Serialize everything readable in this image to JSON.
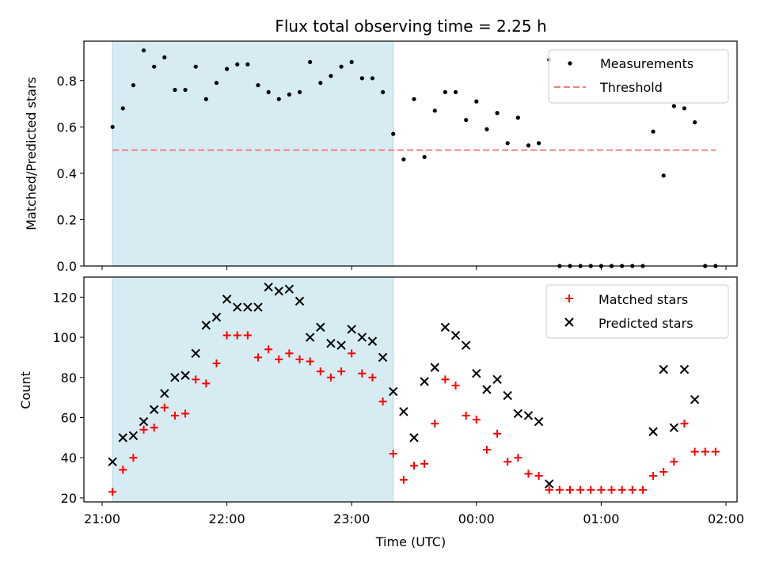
{
  "chart_data": [
    {
      "type": "scatter",
      "title": "Flux total observing time = 2.25 h",
      "ylabel": "Matched/Predicted stars",
      "xlabel": "",
      "xlim": [
        "21:00",
        "02:00"
      ],
      "ylim": [
        0,
        0.97
      ],
      "xticks": [
        "21:00",
        "22:00",
        "23:00",
        "00:00",
        "01:00",
        "02:00"
      ],
      "yticks": [
        "0.0",
        "0.2",
        "0.4",
        "0.6",
        "0.8"
      ],
      "ytick_values": [
        0,
        0.2,
        0.4,
        0.6,
        0.8
      ],
      "highlight": {
        "from": "21:05",
        "to": "23:20",
        "color": "#add8e6"
      },
      "legend": "top-right",
      "series": [
        {
          "name": "Measurements",
          "color": "#000000",
          "marker": "dot",
          "points": [
            [
              "21:05",
              0.6
            ],
            [
              "21:10",
              0.68
            ],
            [
              "21:15",
              0.78
            ],
            [
              "21:20",
              0.93
            ],
            [
              "21:25",
              0.86
            ],
            [
              "21:30",
              0.9
            ],
            [
              "21:35",
              0.76
            ],
            [
              "21:40",
              0.76
            ],
            [
              "21:45",
              0.86
            ],
            [
              "21:50",
              0.72
            ],
            [
              "21:55",
              0.79
            ],
            [
              "22:00",
              0.85
            ],
            [
              "22:05",
              0.87
            ],
            [
              "22:10",
              0.87
            ],
            [
              "22:15",
              0.78
            ],
            [
              "22:20",
              0.75
            ],
            [
              "22:25",
              0.72
            ],
            [
              "22:30",
              0.74
            ],
            [
              "22:35",
              0.75
            ],
            [
              "22:40",
              0.88
            ],
            [
              "22:45",
              0.79
            ],
            [
              "22:50",
              0.82
            ],
            [
              "22:55",
              0.86
            ],
            [
              "23:00",
              0.88
            ],
            [
              "23:05",
              0.81
            ],
            [
              "23:10",
              0.81
            ],
            [
              "23:15",
              0.75
            ],
            [
              "23:20",
              0.57
            ],
            [
              "23:25",
              0.46
            ],
            [
              "23:30",
              0.72
            ],
            [
              "23:35",
              0.47
            ],
            [
              "23:40",
              0.67
            ],
            [
              "23:45",
              0.75
            ],
            [
              "23:50",
              0.75
            ],
            [
              "23:55",
              0.63
            ],
            [
              "00:00",
              0.71
            ],
            [
              "00:05",
              0.59
            ],
            [
              "00:10",
              0.66
            ],
            [
              "00:15",
              0.53
            ],
            [
              "00:20",
              0.64
            ],
            [
              "00:25",
              0.52
            ],
            [
              "00:30",
              0.53
            ],
            [
              "00:35",
              0.89
            ],
            [
              "00:40",
              0
            ],
            [
              "00:45",
              0
            ],
            [
              "00:50",
              0
            ],
            [
              "00:55",
              0
            ],
            [
              "01:00",
              0
            ],
            [
              "01:05",
              0
            ],
            [
              "01:10",
              0
            ],
            [
              "01:15",
              0
            ],
            [
              "01:20",
              0
            ],
            [
              "01:25",
              0.58
            ],
            [
              "01:30",
              0.39
            ],
            [
              "01:35",
              0.69
            ],
            [
              "01:40",
              0.68
            ],
            [
              "01:45",
              0.62
            ],
            [
              "01:50",
              0
            ],
            [
              "01:55",
              0
            ]
          ]
        },
        {
          "name": "Threshold",
          "color": "#f08080",
          "marker": "dashed-line",
          "points": [
            [
              "21:05",
              0.5
            ],
            [
              "01:55",
              0.5
            ]
          ]
        }
      ]
    },
    {
      "type": "scatter",
      "title": "",
      "ylabel": "Count",
      "xlabel": "Time (UTC)",
      "xlim": [
        "21:00",
        "02:00"
      ],
      "ylim": [
        18,
        130
      ],
      "xticks": [
        "21:00",
        "22:00",
        "23:00",
        "00:00",
        "01:00",
        "02:00"
      ],
      "yticks": [
        "20",
        "40",
        "60",
        "80",
        "100",
        "120"
      ],
      "ytick_values": [
        20,
        40,
        60,
        80,
        100,
        120
      ],
      "highlight": {
        "from": "21:05",
        "to": "23:20",
        "color": "#add8e6"
      },
      "legend": "top-right",
      "series": [
        {
          "name": "Matched stars",
          "color": "#ff0000",
          "marker": "plus",
          "points": [
            [
              "21:05",
              23
            ],
            [
              "21:10",
              34
            ],
            [
              "21:15",
              40
            ],
            [
              "21:20",
              54
            ],
            [
              "21:25",
              55
            ],
            [
              "21:30",
              65
            ],
            [
              "21:35",
              61
            ],
            [
              "21:40",
              62
            ],
            [
              "21:45",
              79
            ],
            [
              "21:50",
              77
            ],
            [
              "21:55",
              87
            ],
            [
              "22:00",
              101
            ],
            [
              "22:05",
              101
            ],
            [
              "22:10",
              101
            ],
            [
              "22:15",
              90
            ],
            [
              "22:20",
              94
            ],
            [
              "22:25",
              89
            ],
            [
              "22:30",
              92
            ],
            [
              "22:35",
              89
            ],
            [
              "22:40",
              88
            ],
            [
              "22:45",
              83
            ],
            [
              "22:50",
              80
            ],
            [
              "22:55",
              83
            ],
            [
              "23:00",
              92
            ],
            [
              "23:05",
              82
            ],
            [
              "23:10",
              80
            ],
            [
              "23:15",
              68
            ],
            [
              "23:20",
              42
            ],
            [
              "23:25",
              29
            ],
            [
              "23:30",
              36
            ],
            [
              "23:35",
              37
            ],
            [
              "23:40",
              57
            ],
            [
              "23:45",
              79
            ],
            [
              "23:50",
              76
            ],
            [
              "23:55",
              61
            ],
            [
              "00:00",
              59
            ],
            [
              "00:05",
              44
            ],
            [
              "00:10",
              52
            ],
            [
              "00:15",
              38
            ],
            [
              "00:20",
              40
            ],
            [
              "00:25",
              32
            ],
            [
              "00:30",
              31
            ],
            [
              "00:35",
              24
            ],
            [
              "00:40",
              24
            ],
            [
              "00:45",
              24
            ],
            [
              "00:50",
              24
            ],
            [
              "00:55",
              24
            ],
            [
              "01:00",
              24
            ],
            [
              "01:05",
              24
            ],
            [
              "01:10",
              24
            ],
            [
              "01:15",
              24
            ],
            [
              "01:20",
              24
            ],
            [
              "01:25",
              31
            ],
            [
              "01:30",
              33
            ],
            [
              "01:35",
              38
            ],
            [
              "01:40",
              57
            ],
            [
              "01:45",
              43
            ],
            [
              "01:50",
              43
            ],
            [
              "01:55",
              43
            ]
          ]
        },
        {
          "name": "Predicted stars",
          "color": "#000000",
          "marker": "x",
          "points": [
            [
              "21:05",
              38
            ],
            [
              "21:10",
              50
            ],
            [
              "21:15",
              51
            ],
            [
              "21:20",
              58
            ],
            [
              "21:25",
              64
            ],
            [
              "21:30",
              72
            ],
            [
              "21:35",
              80
            ],
            [
              "21:40",
              81
            ],
            [
              "21:45",
              92
            ],
            [
              "21:50",
              106
            ],
            [
              "21:55",
              110
            ],
            [
              "22:00",
              119
            ],
            [
              "22:05",
              115
            ],
            [
              "22:10",
              115
            ],
            [
              "22:15",
              115
            ],
            [
              "22:20",
              125
            ],
            [
              "22:25",
              123
            ],
            [
              "22:30",
              124
            ],
            [
              "22:35",
              118
            ],
            [
              "22:40",
              100
            ],
            [
              "22:45",
              105
            ],
            [
              "22:50",
              97
            ],
            [
              "22:55",
              96
            ],
            [
              "23:00",
              104
            ],
            [
              "23:05",
              100
            ],
            [
              "23:10",
              98
            ],
            [
              "23:15",
              90
            ],
            [
              "23:20",
              73
            ],
            [
              "23:25",
              63
            ],
            [
              "23:30",
              50
            ],
            [
              "23:35",
              78
            ],
            [
              "23:40",
              85
            ],
            [
              "23:45",
              105
            ],
            [
              "23:50",
              101
            ],
            [
              "23:55",
              96
            ],
            [
              "00:00",
              82
            ],
            [
              "00:05",
              74
            ],
            [
              "00:10",
              79
            ],
            [
              "00:15",
              71
            ],
            [
              "00:20",
              62
            ],
            [
              "00:25",
              61
            ],
            [
              "00:30",
              58
            ],
            [
              "00:35",
              27
            ],
            [
              "01:25",
              53
            ],
            [
              "01:30",
              84
            ],
            [
              "01:35",
              55
            ],
            [
              "01:40",
              84
            ],
            [
              "01:45",
              69
            ]
          ]
        }
      ]
    }
  ]
}
